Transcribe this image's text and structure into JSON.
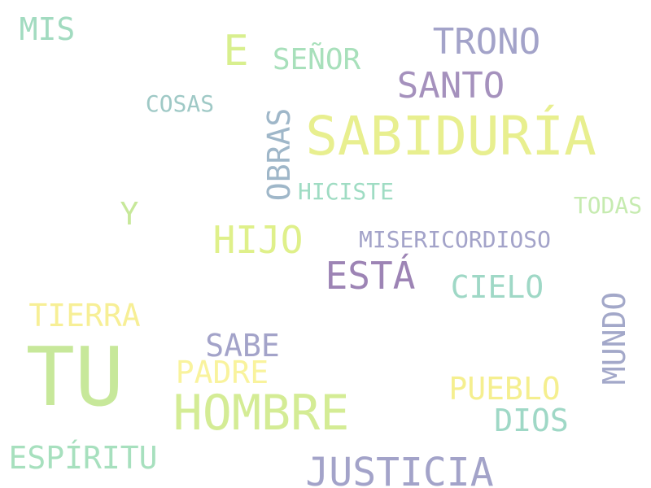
{
  "words": [
    {
      "text": "TU",
      "color": "#c7e89a"
    },
    {
      "text": "SABIDURÍA",
      "color": "#e8ef8f"
    },
    {
      "text": "HOMBRE",
      "color": "#d4ec95"
    },
    {
      "text": "JUSTICIA",
      "color": "#a3a3c9"
    },
    {
      "text": "ESTÁ",
      "color": "#9d84b5"
    },
    {
      "text": "TRONO",
      "color": "#a3a3c9"
    },
    {
      "text": "SANTO",
      "color": "#a591bd"
    },
    {
      "text": "HIJO",
      "color": "#dff08a"
    },
    {
      "text": "E",
      "color": "#d8ef8e"
    },
    {
      "text": "OBRAS",
      "color": "#9fb7c9"
    },
    {
      "text": "SEÑOR",
      "color": "#a8e0bb"
    },
    {
      "text": "MIS",
      "color": "#a2dbc0"
    },
    {
      "text": "TIERRA",
      "color": "#f7ef96"
    },
    {
      "text": "SABE",
      "color": "#a3a3c9"
    },
    {
      "text": "PADRE",
      "color": "#f9f39d"
    },
    {
      "text": "CIELO",
      "color": "#9fd8c6"
    },
    {
      "text": "MUNDO",
      "color": "#a3a8c9"
    },
    {
      "text": "PUEBLO",
      "color": "#f5ef8f"
    },
    {
      "text": "DIOS",
      "color": "#9fd8c6"
    },
    {
      "text": "ESPÍRITU",
      "color": "#a7e0be"
    },
    {
      "text": "Y",
      "color": "#c7e89a"
    },
    {
      "text": "HICISTE",
      "color": "#9fdcc3"
    },
    {
      "text": "MISERICORDIOSO",
      "color": "#a3a3c9"
    },
    {
      "text": "COSAS",
      "color": "#9fc9c6"
    },
    {
      "text": "TODAS",
      "color": "#c6ebb0"
    }
  ]
}
